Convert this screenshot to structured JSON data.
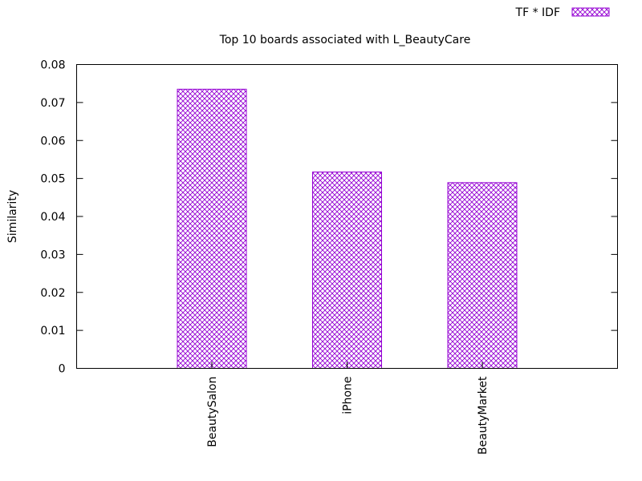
{
  "chart_data": {
    "type": "bar",
    "title": "Top 10 boards associated with L_BeautyCare",
    "xlabel": "",
    "ylabel": "Similarity",
    "categories": [
      "BeautySalon",
      "iPhone",
      "BeautyMarket"
    ],
    "series": [
      {
        "name": "TF * IDF",
        "values": [
          0.0735,
          0.0517,
          0.0489
        ]
      }
    ],
    "ylim": [
      0,
      0.08
    ],
    "yticks": [
      "0",
      "0.01",
      "0.02",
      "0.03",
      "0.04",
      "0.05",
      "0.06",
      "0.07",
      "0.08"
    ],
    "grid": false,
    "legend_position": "top-right",
    "bar_fill": "crosshatch",
    "colors": {
      "bar": "#9400d3",
      "axis": "#000000",
      "background": "#ffffff"
    }
  }
}
